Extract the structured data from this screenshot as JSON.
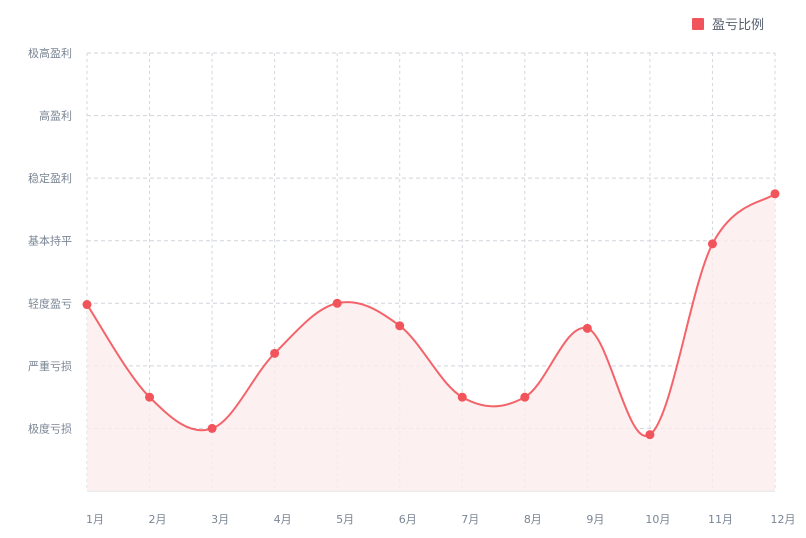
{
  "chart_data": {
    "type": "area",
    "x_categories": [
      "1月",
      "2月",
      "3月",
      "4月",
      "5月",
      "6月",
      "7月",
      "8月",
      "9月",
      "10月",
      "11月",
      "12月"
    ],
    "y_categories": [
      "极度亏损",
      "严重亏损",
      "轻度盈亏",
      "基本持平",
      "稳定盈利",
      "高盈利",
      "极高盈利"
    ],
    "series": [
      {
        "name": "盈亏比例",
        "values": [
          2.98,
          1.5,
          1.0,
          2.2,
          3.0,
          2.64,
          1.5,
          1.5,
          2.6,
          0.9,
          3.95,
          4.75
        ],
        "color": "#f2545b"
      }
    ],
    "ylim": [
      0,
      7
    ],
    "grid": true,
    "legend_position": "top-right"
  }
}
